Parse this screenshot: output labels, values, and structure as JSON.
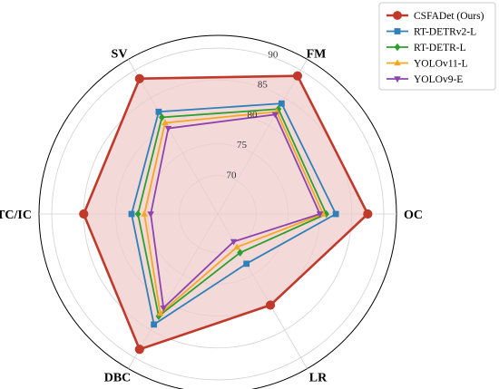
{
  "chart_data": {
    "type": "radar",
    "axes": [
      "OC",
      "FM",
      "SV",
      "TC/IC",
      "DBC",
      "LR"
    ],
    "r_ticks": [
      70,
      75,
      80,
      85,
      90
    ],
    "r_range": [
      64,
      92
    ],
    "grid": true,
    "legend_position": "top-right",
    "series": [
      {
        "name": "CSFADet (Ours)",
        "values": [
          87.5,
          89.0,
          88.5,
          85.0,
          88.5,
          80.5
        ],
        "color": "#c0392b",
        "marker": "circle",
        "fill": "#f0cccc"
      },
      {
        "name": "RT-DETRv2-L",
        "values": [
          82.5,
          84.0,
          82.5,
          77.5,
          84.0,
          73.0
        ],
        "color": "#2f80b8",
        "marker": "square"
      },
      {
        "name": "RT-DETR-L",
        "values": [
          81.0,
          83.0,
          81.5,
          76.5,
          82.5,
          71.0
        ],
        "color": "#2ca02c",
        "marker": "diamond"
      },
      {
        "name": "YOLOv11-L",
        "values": [
          80.5,
          82.5,
          80.5,
          75.5,
          82.0,
          70.0
        ],
        "color": "#f5a623",
        "marker": "triangle-up"
      },
      {
        "name": "YOLOv9-E",
        "values": [
          80.0,
          82.0,
          79.5,
          74.5,
          81.0,
          69.0
        ],
        "color": "#8e44ad",
        "marker": "triangle-down"
      }
    ]
  }
}
